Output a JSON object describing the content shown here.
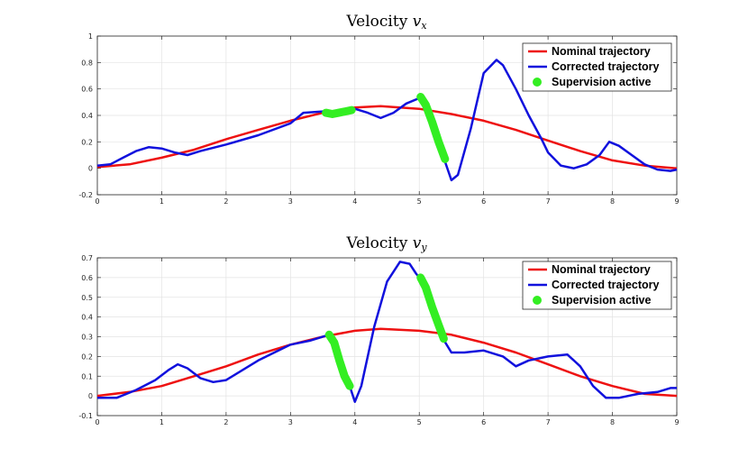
{
  "colors": {
    "nominal": "#ee1111",
    "corrected": "#1111dd",
    "supervision": "#33ee22",
    "grid": "#e3e3e3",
    "axis": "#262626"
  },
  "chart_data": [
    {
      "type": "line",
      "title": "Velocity ",
      "title_var": "v",
      "title_sub": "x",
      "xlabel": "",
      "ylabel": "",
      "xlim": [
        0,
        9
      ],
      "ylim": [
        -0.2,
        1
      ],
      "xticks": [
        "0",
        "1",
        "2",
        "3",
        "4",
        "5",
        "6",
        "7",
        "8",
        "9"
      ],
      "yticks": [
        "-0.2",
        "0",
        "0.2",
        "0.4",
        "0.6",
        "0.8",
        "1"
      ],
      "grid": true,
      "legend_position": "top-right",
      "legend": [
        "Nominal trajectory",
        "Corrected trajectory",
        "Supervision active"
      ],
      "series": [
        {
          "name": "Nominal trajectory",
          "x": [
            0,
            0.5,
            1,
            1.5,
            2,
            2.5,
            3,
            3.5,
            4,
            4.4,
            5,
            5.5,
            6,
            6.5,
            7,
            7.5,
            8,
            8.5,
            9
          ],
          "values": [
            0.01,
            0.03,
            0.08,
            0.14,
            0.22,
            0.29,
            0.36,
            0.42,
            0.46,
            0.47,
            0.45,
            0.41,
            0.36,
            0.29,
            0.21,
            0.13,
            0.06,
            0.02,
            0.0
          ]
        },
        {
          "name": "Corrected trajectory",
          "x": [
            0,
            0.2,
            0.4,
            0.6,
            0.8,
            1.0,
            1.2,
            1.4,
            1.6,
            2.0,
            2.5,
            3.0,
            3.2,
            3.5,
            3.8,
            4.0,
            4.2,
            4.4,
            4.6,
            4.8,
            5.0,
            5.1,
            5.2,
            5.3,
            5.4,
            5.5,
            5.6,
            5.8,
            6.0,
            6.2,
            6.3,
            6.5,
            6.7,
            6.9,
            7.0,
            7.2,
            7.4,
            7.6,
            7.8,
            7.95,
            8.1,
            8.3,
            8.5,
            8.7,
            8.9,
            9.0
          ],
          "values": [
            0.02,
            0.03,
            0.08,
            0.13,
            0.16,
            0.15,
            0.12,
            0.1,
            0.13,
            0.18,
            0.25,
            0.34,
            0.42,
            0.43,
            0.42,
            0.45,
            0.42,
            0.38,
            0.42,
            0.49,
            0.53,
            0.48,
            0.36,
            0.2,
            0.05,
            -0.09,
            -0.05,
            0.3,
            0.72,
            0.82,
            0.78,
            0.6,
            0.4,
            0.22,
            0.12,
            0.02,
            0.0,
            0.03,
            0.1,
            0.2,
            0.17,
            0.1,
            0.03,
            -0.01,
            -0.02,
            -0.01
          ]
        },
        {
          "name": "Supervision active",
          "segments": [
            {
              "x": [
                3.55,
                3.65,
                3.75,
                3.85,
                3.95
              ],
              "values": [
                0.42,
                0.41,
                0.42,
                0.43,
                0.44
              ]
            },
            {
              "x": [
                5.02,
                5.1,
                5.2,
                5.3,
                5.4
              ],
              "values": [
                0.54,
                0.48,
                0.35,
                0.2,
                0.07
              ]
            }
          ]
        }
      ]
    },
    {
      "type": "line",
      "title": "Velocity ",
      "title_var": "v",
      "title_sub": "y",
      "xlabel": "",
      "ylabel": "",
      "xlim": [
        0,
        9
      ],
      "ylim": [
        -0.1,
        0.7
      ],
      "xticks": [
        "0",
        "1",
        "2",
        "3",
        "4",
        "5",
        "6",
        "7",
        "8",
        "9"
      ],
      "yticks": [
        "-0.1",
        "0",
        "0.1",
        "0.2",
        "0.3",
        "0.4",
        "0.5",
        "0.6",
        "0.7"
      ],
      "grid": true,
      "legend_position": "top-right",
      "legend": [
        "Nominal trajectory",
        "Corrected trajectory",
        "Supervision active"
      ],
      "series": [
        {
          "name": "Nominal trajectory",
          "x": [
            0,
            0.5,
            1,
            1.5,
            2,
            2.5,
            3,
            3.5,
            4,
            4.4,
            5,
            5.5,
            6,
            6.5,
            7,
            7.5,
            8,
            8.5,
            9
          ],
          "values": [
            0.0,
            0.02,
            0.05,
            0.1,
            0.15,
            0.21,
            0.26,
            0.3,
            0.33,
            0.34,
            0.33,
            0.31,
            0.27,
            0.22,
            0.16,
            0.1,
            0.05,
            0.01,
            0.0
          ]
        },
        {
          "name": "Corrected trajectory",
          "x": [
            0,
            0.3,
            0.6,
            0.9,
            1.1,
            1.25,
            1.4,
            1.6,
            1.8,
            2.0,
            2.5,
            3.0,
            3.3,
            3.6,
            3.7,
            3.8,
            3.9,
            4.0,
            4.1,
            4.3,
            4.5,
            4.7,
            4.85,
            4.95,
            5.05,
            5.2,
            5.35,
            5.5,
            5.7,
            6.0,
            6.3,
            6.5,
            6.7,
            7.0,
            7.3,
            7.5,
            7.7,
            7.9,
            8.1,
            8.4,
            8.7,
            8.9,
            9.0
          ],
          "values": [
            -0.01,
            -0.01,
            0.03,
            0.08,
            0.13,
            0.16,
            0.14,
            0.09,
            0.07,
            0.08,
            0.18,
            0.26,
            0.28,
            0.31,
            0.27,
            0.18,
            0.07,
            -0.03,
            0.05,
            0.35,
            0.58,
            0.68,
            0.67,
            0.62,
            0.58,
            0.45,
            0.3,
            0.22,
            0.22,
            0.23,
            0.2,
            0.15,
            0.18,
            0.2,
            0.21,
            0.15,
            0.05,
            -0.01,
            -0.01,
            0.01,
            0.02,
            0.04,
            0.04
          ]
        },
        {
          "name": "Supervision active",
          "segments": [
            {
              "x": [
                3.6,
                3.68,
                3.76,
                3.84,
                3.92
              ],
              "values": [
                0.31,
                0.27,
                0.18,
                0.1,
                0.05
              ]
            },
            {
              "x": [
                5.02,
                5.1,
                5.2,
                5.3,
                5.38
              ],
              "values": [
                0.6,
                0.55,
                0.45,
                0.36,
                0.29
              ]
            }
          ]
        }
      ]
    }
  ]
}
